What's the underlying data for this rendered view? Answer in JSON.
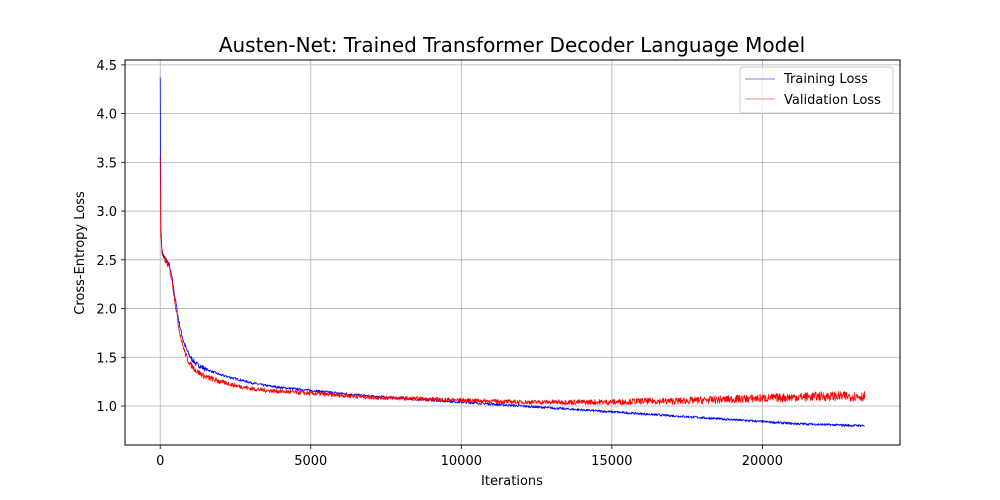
{
  "chart_data": {
    "type": "line",
    "title": "Austen-Net: Trained Transformer Decoder Language Model",
    "xlabel": "Iterations",
    "ylabel": "Cross-Entropy Loss",
    "xlim": [
      -1170,
      24570
    ],
    "ylim": [
      0.6,
      4.55
    ],
    "xticks": [
      0,
      5000,
      10000,
      15000,
      20000
    ],
    "yticks": [
      1.0,
      1.5,
      2.0,
      2.5,
      3.0,
      3.5,
      4.0,
      4.5
    ],
    "xtick_labels": [
      "0",
      "5000",
      "10000",
      "15000",
      "20000"
    ],
    "ytick_labels": [
      "1.0",
      "1.5",
      "2.0",
      "2.5",
      "3.0",
      "3.5",
      "4.0",
      "4.5"
    ],
    "grid": true,
    "legend_position": "top-right",
    "series": [
      {
        "name": "Training Loss",
        "color": "#0000ff",
        "x": [
          0,
          20,
          50,
          100,
          200,
          300,
          400,
          500,
          600,
          700,
          800,
          900,
          1000,
          1200,
          1500,
          2000,
          2500,
          3000,
          3500,
          4000,
          5000,
          6000,
          7000,
          8000,
          9000,
          10000,
          11000,
          12000,
          13000,
          14000,
          15000,
          16000,
          17000,
          18000,
          19000,
          20000,
          21000,
          22000,
          23000,
          23400
        ],
        "y": [
          4.37,
          2.85,
          2.6,
          2.55,
          2.5,
          2.45,
          2.3,
          2.1,
          1.9,
          1.75,
          1.64,
          1.56,
          1.5,
          1.43,
          1.38,
          1.32,
          1.28,
          1.24,
          1.21,
          1.19,
          1.16,
          1.13,
          1.1,
          1.08,
          1.06,
          1.04,
          1.02,
          1.0,
          0.98,
          0.96,
          0.94,
          0.92,
          0.9,
          0.88,
          0.86,
          0.84,
          0.82,
          0.81,
          0.8,
          0.8
        ]
      },
      {
        "name": "Validation Loss",
        "color": "#ff0000",
        "x": [
          0,
          20,
          50,
          100,
          200,
          300,
          400,
          500,
          600,
          700,
          800,
          900,
          1000,
          1200,
          1500,
          2000,
          2500,
          3000,
          3500,
          4000,
          5000,
          6000,
          7000,
          8000,
          9000,
          10000,
          11000,
          12000,
          13000,
          14000,
          15000,
          16000,
          17000,
          18000,
          19000,
          20000,
          21000,
          22000,
          23000,
          23400
        ],
        "y": [
          3.55,
          2.75,
          2.58,
          2.52,
          2.48,
          2.42,
          2.27,
          2.05,
          1.84,
          1.68,
          1.57,
          1.48,
          1.43,
          1.36,
          1.3,
          1.25,
          1.21,
          1.18,
          1.16,
          1.15,
          1.13,
          1.11,
          1.09,
          1.08,
          1.07,
          1.06,
          1.05,
          1.04,
          1.04,
          1.04,
          1.04,
          1.05,
          1.05,
          1.06,
          1.07,
          1.08,
          1.09,
          1.1,
          1.1,
          1.1
        ]
      }
    ]
  }
}
